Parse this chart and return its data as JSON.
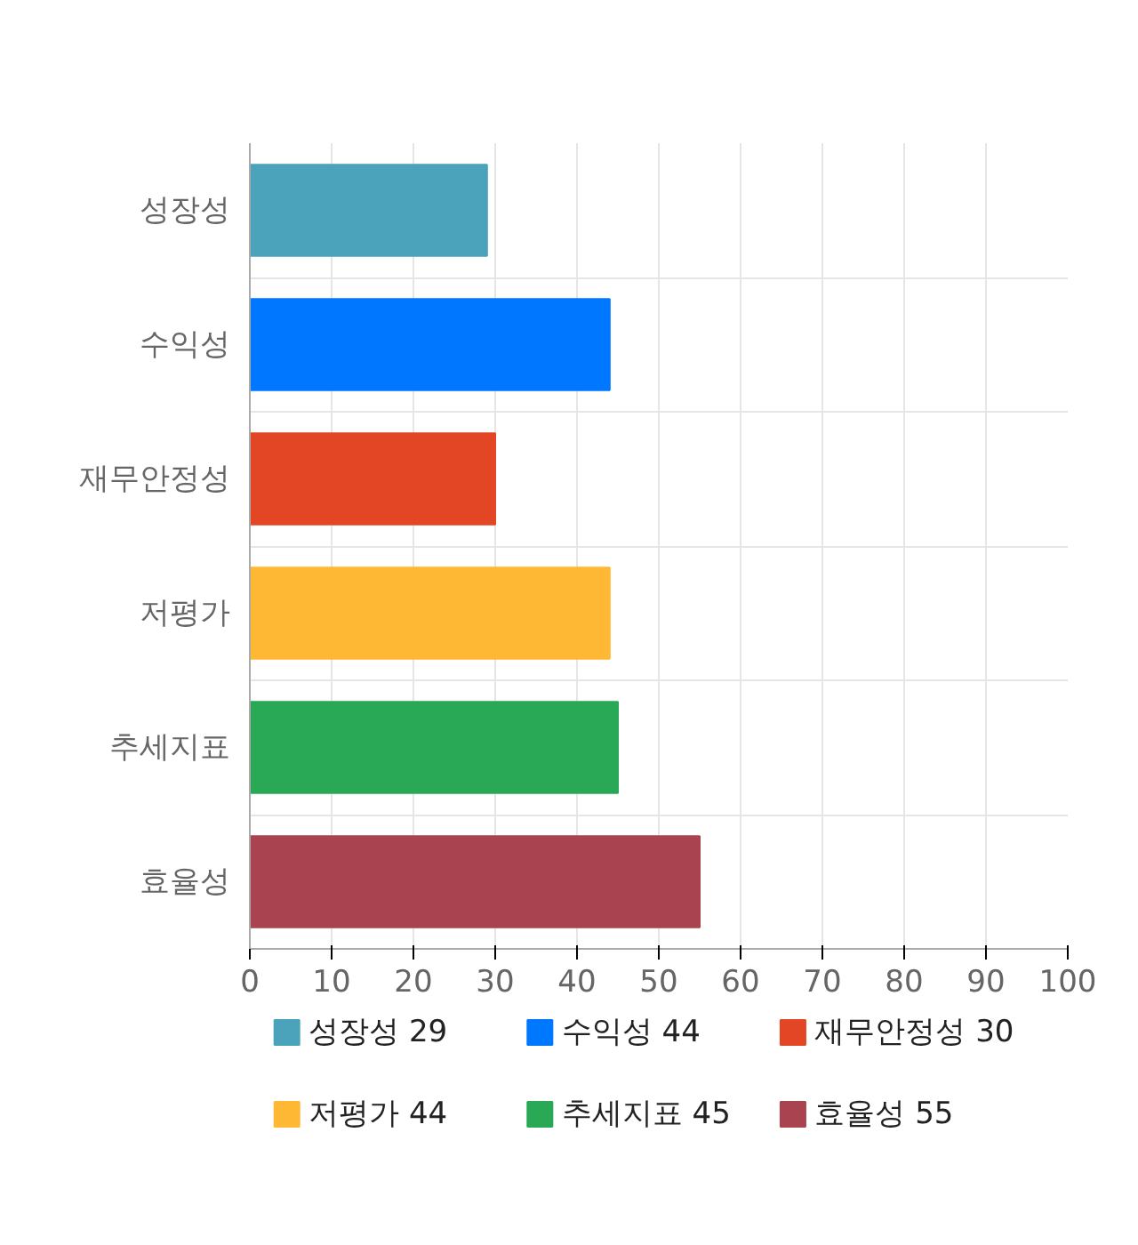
{
  "chart_data": {
    "type": "bar",
    "orientation": "horizontal",
    "categories": [
      "성장성",
      "수익성",
      "재무안정성",
      "저평가",
      "추세지표",
      "효율성"
    ],
    "series": [
      {
        "name": "성장성 29",
        "color": "#4aa3ba",
        "values": [
          29,
          null,
          null,
          null,
          null,
          null
        ]
      },
      {
        "name": "수익성 44",
        "color": "#0077ff",
        "values": [
          null,
          44,
          null,
          null,
          null,
          null
        ]
      },
      {
        "name": "재무안정성 30",
        "color": "#e24625",
        "values": [
          null,
          null,
          30,
          null,
          null,
          null
        ]
      },
      {
        "name": "저평가 44",
        "color": "#ffb833",
        "values": [
          null,
          null,
          null,
          44,
          null,
          null
        ]
      },
      {
        "name": "추세지표 45",
        "color": "#29a856",
        "values": [
          null,
          null,
          null,
          null,
          45,
          null
        ]
      },
      {
        "name": "효율성 55",
        "color": "#a8434f",
        "values": [
          null,
          null,
          null,
          null,
          null,
          55
        ]
      }
    ],
    "xlim": [
      0,
      100
    ],
    "xticks": [
      0,
      10,
      20,
      30,
      40,
      50,
      60,
      70,
      80,
      90,
      100
    ],
    "grid": true,
    "legend": "bottom"
  }
}
